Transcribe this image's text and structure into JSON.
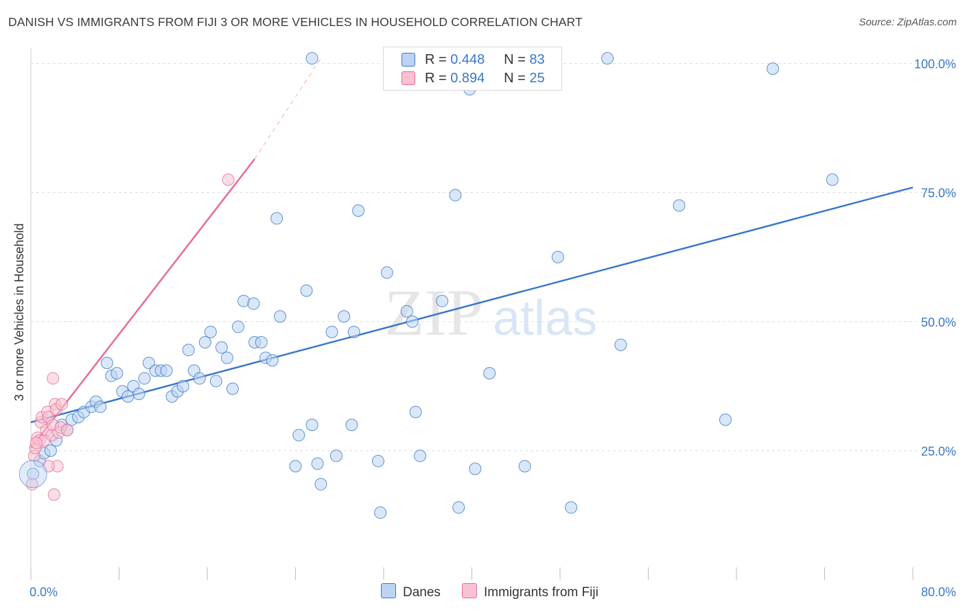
{
  "title": "DANISH VS IMMIGRANTS FROM FIJI 3 OR MORE VEHICLES IN HOUSEHOLD CORRELATION CHART",
  "source": "Source: ZipAtlas.com",
  "watermark": {
    "zip": "ZIP",
    "atlas": "atlas"
  },
  "colors": {
    "blue": "#3a78c9",
    "blue_fill": "#bcd3f2",
    "pink": "#e96a93",
    "pink_fill": "#f7c2d1",
    "grid": "#dcdcdc",
    "tick_label": "#3a78c9"
  },
  "legend": {
    "row1": {
      "r_label": "R =",
      "r_value": "0.448",
      "n_label": "N =",
      "n_value": "83"
    },
    "row2": {
      "r_label": "R =",
      "r_value": "0.894",
      "n_label": "N =",
      "n_value": "25"
    }
  },
  "bottom_legend": {
    "danes": "Danes",
    "fiji": "Immigrants from Fiji"
  },
  "chart_data": {
    "type": "scatter",
    "ylabel": "3 or more Vehicles in Household",
    "xlabel": "",
    "x_tick_labels": [
      "0.0%",
      "80.0%"
    ],
    "y_tick_labels": [
      "25.0%",
      "50.0%",
      "75.0%",
      "100.0%"
    ],
    "y_ticks": [
      25,
      50,
      75,
      100
    ],
    "xlim": [
      0,
      80
    ],
    "ylim": [
      0,
      103
    ],
    "grid": true,
    "legend_position": "top-center",
    "series": [
      {
        "name": "Danes",
        "color": "#3a78c9",
        "points": [
          [
            0.2,
            20.5
          ],
          [
            0.8,
            23
          ],
          [
            1.2,
            24.5
          ],
          [
            1.8,
            25
          ],
          [
            2.3,
            27
          ],
          [
            2.8,
            30
          ],
          [
            3.3,
            29
          ],
          [
            3.7,
            31
          ],
          [
            4.3,
            31.5
          ],
          [
            4.8,
            32.5
          ],
          [
            5.5,
            33.5
          ],
          [
            5.9,
            34.5
          ],
          [
            6.3,
            33.5
          ],
          [
            6.9,
            42
          ],
          [
            7.3,
            39.5
          ],
          [
            7.8,
            40
          ],
          [
            8.3,
            36.5
          ],
          [
            8.8,
            35.5
          ],
          [
            9.3,
            37.5
          ],
          [
            9.8,
            36
          ],
          [
            10.3,
            39
          ],
          [
            10.7,
            42
          ],
          [
            11.3,
            40.5
          ],
          [
            11.8,
            40.5
          ],
          [
            12.3,
            40.5
          ],
          [
            12.8,
            35.5
          ],
          [
            13.3,
            36.5
          ],
          [
            13.8,
            37.5
          ],
          [
            14.3,
            44.5
          ],
          [
            14.8,
            40.5
          ],
          [
            15.3,
            39
          ],
          [
            15.8,
            46
          ],
          [
            16.3,
            48
          ],
          [
            16.8,
            38.5
          ],
          [
            17.3,
            45
          ],
          [
            17.8,
            43
          ],
          [
            18.3,
            37
          ],
          [
            18.8,
            49
          ],
          [
            19.3,
            54
          ],
          [
            20.2,
            53.5
          ],
          [
            20.3,
            46
          ],
          [
            20.9,
            46
          ],
          [
            21.3,
            43
          ],
          [
            21.9,
            42.5
          ],
          [
            22.6,
            51
          ],
          [
            22.3,
            70
          ],
          [
            25.0,
            56
          ],
          [
            27.3,
            48
          ],
          [
            28.4,
            51
          ],
          [
            29.3,
            48
          ],
          [
            29.7,
            71.5
          ],
          [
            32.3,
            59.5
          ],
          [
            34.1,
            52
          ],
          [
            34.6,
            50
          ],
          [
            34.9,
            32.5
          ],
          [
            37.3,
            54
          ],
          [
            38.5,
            74.5
          ],
          [
            41.6,
            40
          ],
          [
            47.8,
            62.5
          ],
          [
            53.5,
            45.5
          ],
          [
            58.8,
            72.5
          ],
          [
            63.0,
            31
          ],
          [
            72.7,
            77.5
          ],
          [
            24.0,
            22
          ],
          [
            24.3,
            28
          ],
          [
            25.5,
            30
          ],
          [
            26.0,
            22.5
          ],
          [
            26.3,
            18.5
          ],
          [
            27.7,
            24
          ],
          [
            29.1,
            30
          ],
          [
            31.5,
            23
          ],
          [
            31.7,
            13
          ],
          [
            35.3,
            24
          ],
          [
            38.8,
            14
          ],
          [
            40.3,
            21.5
          ],
          [
            44.8,
            22
          ],
          [
            49.0,
            14
          ],
          [
            25.5,
            101
          ],
          [
            39.8,
            95
          ],
          [
            42.8,
            101
          ],
          [
            44.3,
            101
          ],
          [
            52.3,
            101
          ],
          [
            67.3,
            99
          ]
        ]
      },
      {
        "name": "Immigrants from Fiji",
        "color": "#e96a93",
        "points": [
          [
            0.1,
            18.5
          ],
          [
            0.3,
            24
          ],
          [
            0.4,
            25.5
          ],
          [
            0.6,
            27.5
          ],
          [
            0.8,
            27
          ],
          [
            0.9,
            30.5
          ],
          [
            1.0,
            31.5
          ],
          [
            1.2,
            27
          ],
          [
            1.4,
            29
          ],
          [
            1.5,
            32.5
          ],
          [
            1.6,
            31.5
          ],
          [
            1.9,
            28
          ],
          [
            2.0,
            30
          ],
          [
            2.1,
            16.5
          ],
          [
            2.2,
            34
          ],
          [
            2.3,
            33
          ],
          [
            2.4,
            22
          ],
          [
            2.5,
            28.5
          ],
          [
            2.7,
            29.5
          ],
          [
            2.8,
            34
          ],
          [
            3.3,
            29
          ],
          [
            1.6,
            22
          ],
          [
            2.0,
            39
          ],
          [
            0.5,
            26.5
          ],
          [
            17.9,
            77.5
          ]
        ]
      }
    ],
    "trendlines": [
      {
        "series": "Danes",
        "x": [
          0,
          80
        ],
        "y": [
          30.5,
          76
        ]
      },
      {
        "series": "Immigrants from Fiji",
        "x": [
          0,
          20.3
        ],
        "y": [
          25.5,
          81.5
        ]
      },
      {
        "series": "Immigrants from Fiji",
        "style": "dashed",
        "x": [
          20.3,
          26.3
        ],
        "y": [
          81.5,
          101
        ]
      }
    ]
  }
}
